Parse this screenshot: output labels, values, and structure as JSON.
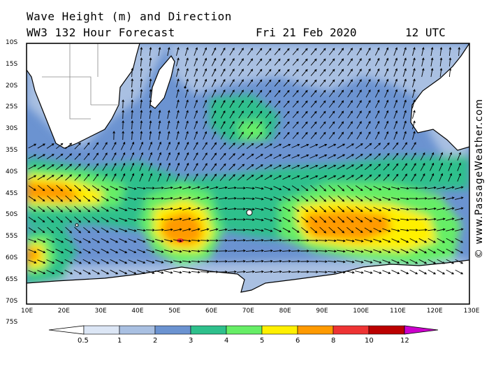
{
  "title": {
    "line1": "Wave Height (m) and Direction",
    "line2": "WW3 132 Hour Forecast",
    "date": "Fri 21 Feb 2020",
    "time": "12 UTC"
  },
  "credit": "© www.PassageWeather.com",
  "map": {
    "lat_labels": [
      "10S",
      "15S",
      "20S",
      "25S",
      "30S",
      "35S",
      "40S",
      "45S",
      "50S",
      "55S",
      "60S",
      "65S",
      "70S",
      "75S"
    ],
    "lon_labels": [
      "10E",
      "20E",
      "30E",
      "40E",
      "50E",
      "60E",
      "70E",
      "80E",
      "90E",
      "100E",
      "110E",
      "120E",
      "130E"
    ],
    "land_color": "#ffffff",
    "coastline_color": "#000000",
    "arrow_color": "#000000"
  },
  "colorbar": {
    "levels": [
      "0.5",
      "1",
      "2",
      "3",
      "4",
      "5",
      "6",
      "8",
      "10",
      "12"
    ],
    "colors": [
      "#ffffff",
      "#dce6f5",
      "#a9c0e2",
      "#6b93d1",
      "#2ec08c",
      "#66ee66",
      "#fff000",
      "#ff9a00",
      "#ee3333",
      "#bb0000",
      "#cc00cc"
    ]
  }
}
